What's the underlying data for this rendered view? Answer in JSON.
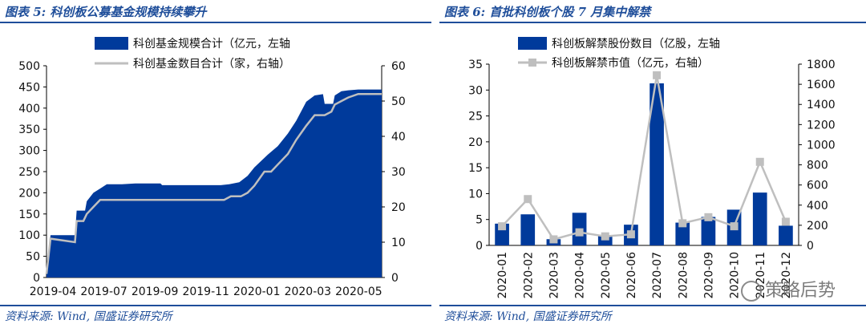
{
  "left": {
    "caption": "图表 5: 科创板公募基金规模持续攀升",
    "source": "资料来源: Wind, 国盛证券研究所"
  },
  "right": {
    "caption": "图表 6: 首批科创板个股 7 月集中解禁",
    "source": "资料来源: Wind, 国盛证券研究所"
  },
  "watermark": "策略后势",
  "colors": {
    "bar": "#003a9b",
    "line": "#bfbfbf",
    "caption": "#1f4e9a"
  },
  "chart_data": [
    {
      "type": "area",
      "title": "",
      "legend": [
        "科创基金规模合计（亿元，左轴",
        "科创基金数目合计（家，右轴）"
      ],
      "legend_position": "top",
      "x_tick_labels": [
        "2019-04",
        "2019-07",
        "2019-09",
        "2019-11",
        "2020-01",
        "2020-03",
        "2020-05"
      ],
      "y_left": {
        "min": 0,
        "max": 500,
        "ticks": [
          0,
          50,
          100,
          150,
          200,
          250,
          300,
          350,
          400,
          450,
          500
        ]
      },
      "y_right": {
        "min": 0,
        "max": 60,
        "ticks": [
          0,
          10,
          20,
          30,
          40,
          50,
          60
        ]
      },
      "series": [
        {
          "name": "科创基金规模合计（亿元，左轴",
          "axis": "left",
          "kind": "area",
          "points": [
            [
              0.0,
              10
            ],
            [
              0.012,
              100
            ],
            [
              0.085,
              100
            ],
            [
              0.09,
              158
            ],
            [
              0.115,
              158
            ],
            [
              0.12,
              180
            ],
            [
              0.14,
              200
            ],
            [
              0.16,
              210
            ],
            [
              0.18,
              220
            ],
            [
              0.225,
              220
            ],
            [
              0.265,
              222
            ],
            [
              0.34,
              222
            ],
            [
              0.345,
              218
            ],
            [
              0.52,
              218
            ],
            [
              0.545,
              220
            ],
            [
              0.575,
              225
            ],
            [
              0.6,
              240
            ],
            [
              0.62,
              260
            ],
            [
              0.66,
              290
            ],
            [
              0.69,
              310
            ],
            [
              0.72,
              340
            ],
            [
              0.745,
              370
            ],
            [
              0.775,
              415
            ],
            [
              0.8,
              430
            ],
            [
              0.825,
              433
            ],
            [
              0.83,
              410
            ],
            [
              0.855,
              410
            ],
            [
              0.86,
              430
            ],
            [
              0.88,
              440
            ],
            [
              0.9,
              442
            ],
            [
              0.93,
              444
            ],
            [
              1.0,
              444
            ]
          ]
        },
        {
          "name": "科创基金数目合计（家，右轴）",
          "axis": "right",
          "kind": "line",
          "points": [
            [
              0.0,
              1
            ],
            [
              0.012,
              11
            ],
            [
              0.085,
              10
            ],
            [
              0.09,
              16
            ],
            [
              0.11,
              16
            ],
            [
              0.12,
              18
            ],
            [
              0.14,
              20
            ],
            [
              0.16,
              22
            ],
            [
              0.2,
              22
            ],
            [
              0.52,
              22
            ],
            [
              0.53,
              22
            ],
            [
              0.55,
              23
            ],
            [
              0.58,
              23
            ],
            [
              0.6,
              24
            ],
            [
              0.62,
              26
            ],
            [
              0.65,
              30
            ],
            [
              0.67,
              30
            ],
            [
              0.69,
              32
            ],
            [
              0.72,
              35
            ],
            [
              0.745,
              39
            ],
            [
              0.775,
              43
            ],
            [
              0.8,
              46
            ],
            [
              0.83,
              46
            ],
            [
              0.85,
              47
            ],
            [
              0.86,
              49
            ],
            [
              0.88,
              50
            ],
            [
              0.9,
              51
            ],
            [
              0.93,
              52
            ],
            [
              1.0,
              52
            ]
          ]
        }
      ]
    },
    {
      "type": "bar",
      "title": "",
      "legend": [
        "科创板解禁股份数目（亿股，左轴",
        "科创板解禁市值（亿元，右轴）"
      ],
      "legend_position": "top",
      "categories": [
        "2020-01",
        "2020-02",
        "2020-03",
        "2020-04",
        "2020-05",
        "2020-06",
        "2020-07",
        "2020-08",
        "2020-09",
        "2020-10",
        "2020-11",
        "2020-12"
      ],
      "y_left": {
        "min": 0,
        "max": 35,
        "ticks": [
          0,
          5,
          10,
          15,
          20,
          25,
          30,
          35
        ]
      },
      "y_right": {
        "min": 0,
        "max": 1800,
        "ticks": [
          0,
          200,
          400,
          600,
          800,
          1000,
          1200,
          1400,
          1600,
          1800
        ]
      },
      "series": [
        {
          "name": "科创板解禁股份数目（亿股，左轴",
          "axis": "left",
          "kind": "bar",
          "values": [
            4.2,
            6.0,
            1.2,
            6.3,
            2.0,
            4.0,
            31.3,
            4.4,
            5.5,
            6.9,
            10.2,
            3.8
          ]
        },
        {
          "name": "科创板解禁市值（亿元，右轴）",
          "axis": "right",
          "kind": "line",
          "values": [
            190,
            460,
            60,
            130,
            90,
            110,
            1690,
            220,
            280,
            190,
            830,
            235
          ]
        }
      ]
    }
  ]
}
